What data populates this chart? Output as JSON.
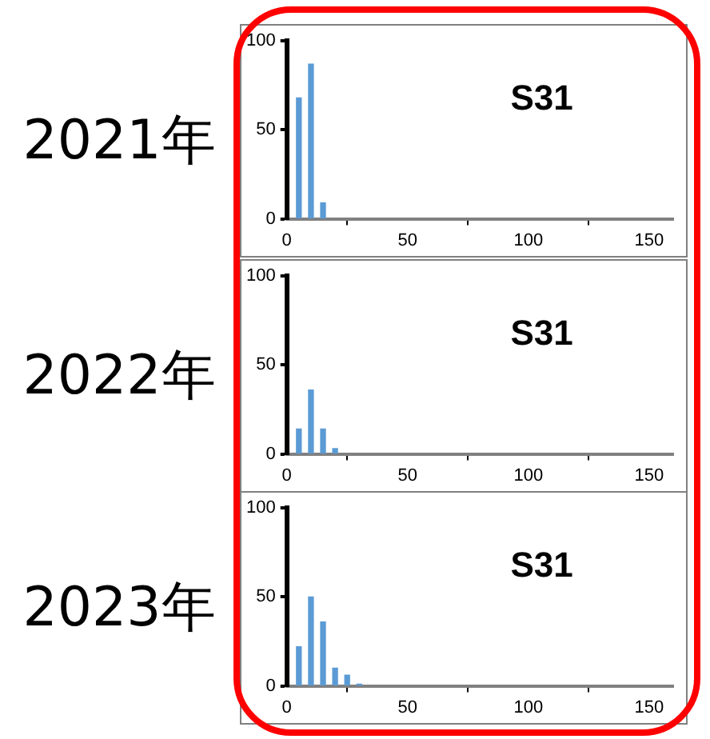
{
  "chart_data": [
    {
      "type": "bar",
      "title": "2021年",
      "annotations": [
        "S31"
      ],
      "x": [
        5,
        10,
        15
      ],
      "values": [
        68,
        87,
        9
      ],
      "color": "#5b9bd5",
      "xlim": [
        0,
        160
      ],
      "xticks": [
        0,
        50,
        100,
        150
      ],
      "ylim": [
        0,
        100
      ],
      "yticks": [
        0,
        50,
        100
      ],
      "grid": false,
      "legend": false
    },
    {
      "type": "bar",
      "title": "2022年",
      "annotations": [
        "S31"
      ],
      "x": [
        5,
        10,
        15,
        20
      ],
      "values": [
        14,
        36,
        14,
        3
      ],
      "color": "#5b9bd5",
      "xlim": [
        0,
        160
      ],
      "xticks": [
        0,
        50,
        100,
        150
      ],
      "ylim": [
        0,
        100
      ],
      "yticks": [
        0,
        50,
        100
      ],
      "grid": false,
      "legend": false
    },
    {
      "type": "bar",
      "title": "2023年",
      "annotations": [
        "S31"
      ],
      "x": [
        5,
        10,
        15,
        20,
        25,
        30
      ],
      "values": [
        22,
        50,
        36,
        10,
        6,
        1
      ],
      "color": "#5b9bd5",
      "xlim": [
        0,
        160
      ],
      "xticks": [
        0,
        50,
        100,
        150
      ],
      "ylim": [
        0,
        100
      ],
      "yticks": [
        0,
        50,
        100
      ],
      "grid": false,
      "legend": false
    }
  ]
}
